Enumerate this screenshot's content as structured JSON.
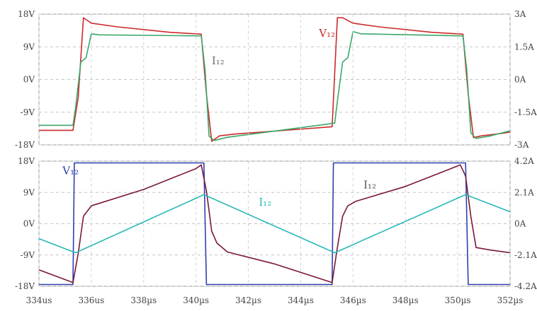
{
  "chart_data": [
    {
      "type": "line",
      "panel": "top",
      "title": "",
      "xlabel": "",
      "xlim": [
        334,
        352
      ],
      "ylim_left": [
        -18,
        18
      ],
      "ylim_right": [
        -3,
        3
      ],
      "left_ticks": [
        {
          "value": 18,
          "label": "18V"
        },
        {
          "value": 9,
          "label": "9V"
        },
        {
          "value": 0,
          "label": "0V"
        },
        {
          "value": -9,
          "label": "-9V"
        },
        {
          "value": -18,
          "label": "-18V"
        }
      ],
      "right_ticks": [
        {
          "value": 3,
          "label": "3A"
        },
        {
          "value": 1.5,
          "label": "1.5A"
        },
        {
          "value": 0,
          "label": "0A"
        },
        {
          "value": -1.5,
          "label": "-1.5A"
        },
        {
          "value": -3,
          "label": "-3A"
        }
      ],
      "grid": true,
      "series": [
        {
          "name": "V₁₂",
          "axis": "left",
          "color": "#cc2a2a",
          "x": [
            334,
            335.3,
            335.5,
            335.7,
            336.0,
            337.0,
            339.0,
            340.2,
            340.4,
            340.6,
            340.9,
            341.5,
            343.0,
            345.2,
            345.4,
            345.6,
            346.0,
            347.0,
            349.0,
            350.2,
            350.4,
            350.6,
            350.9,
            351.5,
            352
          ],
          "y": [
            -14,
            -14,
            -5,
            17,
            15.5,
            14.5,
            13,
            12.5,
            -4,
            -17,
            -15.5,
            -15,
            -14.2,
            -13,
            17,
            17,
            15.5,
            14.5,
            13,
            12.5,
            -4,
            -16,
            -15.5,
            -15,
            -14.5
          ]
        },
        {
          "name": "I₁₂",
          "axis": "right",
          "color": "#3aa86a",
          "x": [
            334,
            335.3,
            335.4,
            335.6,
            335.8,
            336.0,
            336.3,
            340.2,
            340.35,
            340.5,
            340.7,
            341.2,
            345.0,
            345.3,
            345.4,
            345.6,
            345.8,
            346.0,
            346.3,
            350.2,
            350.35,
            350.5,
            350.7,
            351.2,
            352
          ],
          "y": [
            -2.1,
            -2.1,
            -1.3,
            0.8,
            1.0,
            2.1,
            2.05,
            2.0,
            0.4,
            -2.6,
            -2.8,
            -2.65,
            -2.05,
            -2.0,
            -1.0,
            0.8,
            1.0,
            2.2,
            2.1,
            2.0,
            0.4,
            -2.45,
            -2.7,
            -2.6,
            -2.35
          ]
        }
      ],
      "annotations": [
        {
          "text": "V₁₂",
          "x": 344.7,
          "y": 11.8,
          "color": "#cc2a2a"
        },
        {
          "text": "I₁₂",
          "x": 340.6,
          "y": 4.2,
          "color": "#6f6f6f"
        }
      ]
    },
    {
      "type": "line",
      "panel": "bottom",
      "title": "",
      "xlabel": "",
      "xlim": [
        334,
        352
      ],
      "ylim_left": [
        -18,
        18
      ],
      "ylim_right": [
        -4.2,
        4.2
      ],
      "left_ticks": [
        {
          "value": 18,
          "label": "18V"
        },
        {
          "value": 9,
          "label": "9V"
        },
        {
          "value": 0,
          "label": "0V"
        },
        {
          "value": -9,
          "label": "-9V"
        },
        {
          "value": -18,
          "label": "-18V"
        }
      ],
      "right_ticks": [
        {
          "value": 4.2,
          "label": "4.2A"
        },
        {
          "value": 2.1,
          "label": "2.1A"
        },
        {
          "value": 0,
          "label": "0A"
        },
        {
          "value": -2.1,
          "label": "-2.1A"
        },
        {
          "value": -4.2,
          "label": "-4.2A"
        }
      ],
      "x_ticks": [
        {
          "value": 334,
          "label": "334us"
        },
        {
          "value": 336,
          "label": "336us"
        },
        {
          "value": 338,
          "label": "338µs"
        },
        {
          "value": 340,
          "label": "340µs"
        },
        {
          "value": 342,
          "label": "342µs"
        },
        {
          "value": 344,
          "label": "344µs"
        },
        {
          "value": 346,
          "label": "346µs"
        },
        {
          "value": 348,
          "label": "348µs"
        },
        {
          "value": 350,
          "label": "350µs"
        },
        {
          "value": 352,
          "label": "352µs"
        }
      ],
      "grid": true,
      "series": [
        {
          "name": "V₁₂",
          "axis": "left",
          "color": "#2f3fb0",
          "x": [
            334,
            335.3,
            335.35,
            340.3,
            340.4,
            345.2,
            345.25,
            350.3,
            350.4,
            352
          ],
          "y": [
            -17.5,
            -17.5,
            17.5,
            17.5,
            -17.5,
            -17.5,
            17.5,
            17.5,
            -17.5,
            -17.5
          ]
        },
        {
          "name": "I₁₂",
          "axis": "right",
          "color": "#7a1838",
          "x": [
            334,
            335.3,
            335.5,
            335.7,
            336.0,
            338.0,
            340.0,
            340.2,
            340.4,
            340.6,
            340.8,
            341.2,
            343.0,
            345.2,
            345.4,
            345.6,
            345.8,
            346.1,
            348.0,
            350.1,
            350.3,
            350.5,
            350.7,
            351.2,
            352
          ],
          "y": [
            -3.1,
            -3.95,
            -2.0,
            0.5,
            1.2,
            2.3,
            3.7,
            3.95,
            2.2,
            -0.5,
            -1.3,
            -1.9,
            -2.7,
            -3.95,
            -1.6,
            0.5,
            1.2,
            1.5,
            2.5,
            3.95,
            3.2,
            0.5,
            -1.6,
            -1.75,
            -1.95
          ]
        },
        {
          "name": "I₁₂",
          "axis": "right",
          "color": "#27b8b8",
          "x": [
            334,
            335.4,
            340.3,
            345.3,
            350.3,
            352
          ],
          "y": [
            -1.0,
            -1.95,
            1.95,
            -1.95,
            1.95,
            0.8
          ]
        }
      ],
      "annotations": [
        {
          "text": "V₁₂",
          "x": 334.9,
          "y": 14.2,
          "color": "#2f3fb0"
        },
        {
          "text": "I₁₂",
          "x": 346.4,
          "y": 10.2,
          "color": "#555555"
        },
        {
          "text": "I₁₂",
          "x": 342.4,
          "y": 5.2,
          "color": "#27b8b8"
        }
      ]
    }
  ]
}
